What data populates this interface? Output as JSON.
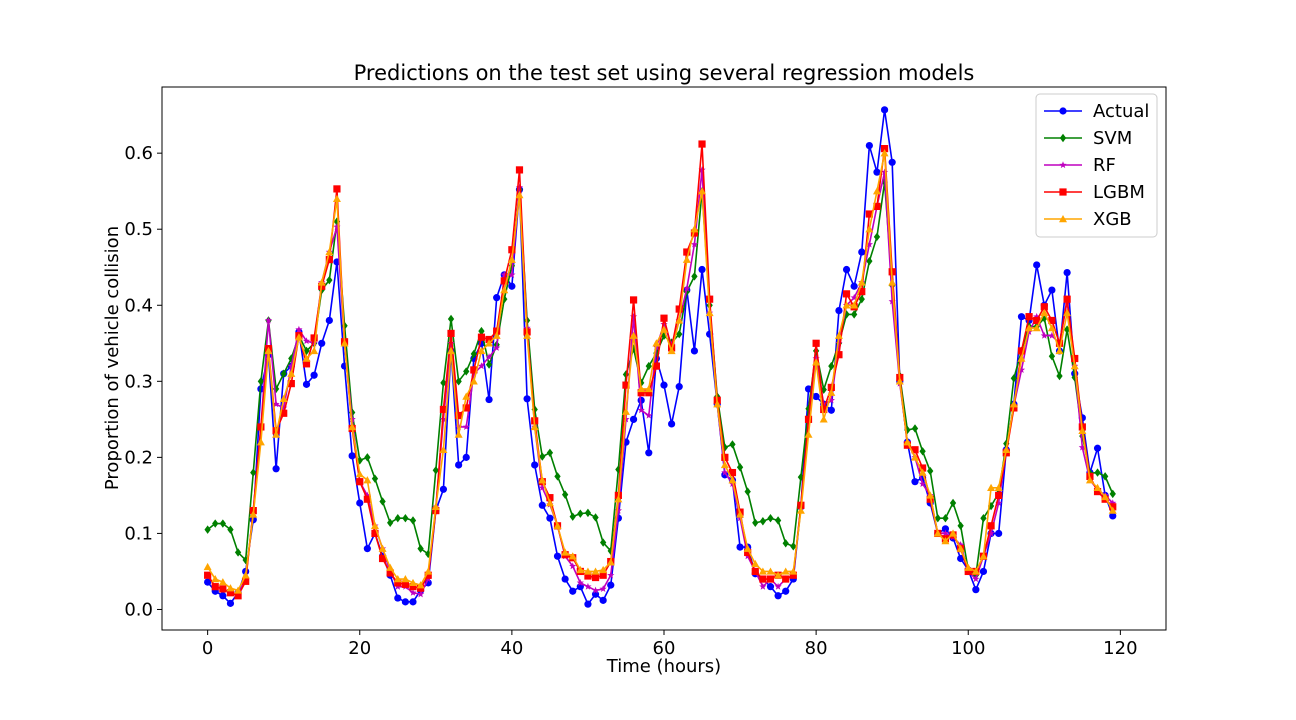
{
  "chart_data": {
    "type": "line",
    "title": "Predictions on the test set using several regression models",
    "xlabel": "Time (hours)",
    "ylabel": "Proportion of vehicle collision",
    "xlim": [
      -6,
      126
    ],
    "ylim": [
      -0.027,
      0.687
    ],
    "xticks": [
      0,
      20,
      40,
      60,
      80,
      100,
      120
    ],
    "yticks": [
      0.0,
      0.1,
      0.2,
      0.3,
      0.4,
      0.5,
      0.6
    ],
    "ytick_labels": [
      "0.0",
      "0.1",
      "0.2",
      "0.3",
      "0.4",
      "0.5",
      "0.6"
    ],
    "legend_position": "top-right",
    "grid": false,
    "x": [
      0,
      1,
      2,
      3,
      4,
      5,
      6,
      7,
      8,
      9,
      10,
      11,
      12,
      13,
      14,
      15,
      16,
      17,
      18,
      19,
      20,
      21,
      22,
      23,
      24,
      25,
      26,
      27,
      28,
      29,
      30,
      31,
      32,
      33,
      34,
      35,
      36,
      37,
      38,
      39,
      40,
      41,
      42,
      43,
      44,
      45,
      46,
      47,
      48,
      49,
      50,
      51,
      52,
      53,
      54,
      55,
      56,
      57,
      58,
      59,
      60,
      61,
      62,
      63,
      64,
      65,
      66,
      67,
      68,
      69,
      70,
      71,
      72,
      73,
      74,
      75,
      76,
      77,
      78,
      79,
      80,
      81,
      82,
      83,
      84,
      85,
      86,
      87,
      88,
      89,
      90,
      91,
      92,
      93,
      94,
      95,
      96,
      97,
      98,
      99,
      100,
      101,
      102,
      103,
      104,
      105,
      106,
      107,
      108,
      109,
      110,
      111,
      112,
      113,
      114,
      115,
      116,
      117,
      118,
      119
    ],
    "series": [
      {
        "name": "Actual",
        "color": "#0000ff",
        "marker": "circle",
        "values": [
          0.036,
          0.024,
          0.018,
          0.008,
          0.022,
          0.05,
          0.118,
          0.29,
          0.335,
          0.185,
          0.31,
          0.32,
          0.365,
          0.296,
          0.308,
          0.35,
          0.38,
          0.457,
          0.32,
          0.202,
          0.14,
          0.08,
          0.1,
          0.07,
          0.045,
          0.015,
          0.01,
          0.01,
          0.025,
          0.035,
          0.13,
          0.158,
          0.34,
          0.19,
          0.2,
          0.33,
          0.35,
          0.276,
          0.41,
          0.44,
          0.425,
          0.552,
          0.277,
          0.19,
          0.137,
          0.12,
          0.07,
          0.04,
          0.024,
          0.03,
          0.007,
          0.02,
          0.012,
          0.032,
          0.12,
          0.22,
          0.25,
          0.275,
          0.206,
          0.33,
          0.295,
          0.244,
          0.293,
          0.42,
          0.34,
          0.447,
          0.362,
          0.27,
          0.177,
          0.17,
          0.082,
          0.082,
          0.047,
          0.04,
          0.03,
          0.018,
          0.024,
          0.04,
          0.135,
          0.29,
          0.28,
          0.27,
          0.262,
          0.393,
          0.447,
          0.425,
          0.47,
          0.61,
          0.575,
          0.657,
          0.588,
          0.3,
          0.22,
          0.168,
          0.173,
          0.14,
          0.1,
          0.106,
          0.094,
          0.067,
          0.052,
          0.026,
          0.05,
          0.1,
          0.1,
          0.21,
          0.27,
          0.385,
          0.38,
          0.453,
          0.4,
          0.42,
          0.34,
          0.443,
          0.31,
          0.252,
          0.18,
          0.212,
          0.15,
          0.123
        ]
      },
      {
        "name": "SVM",
        "color": "#008000",
        "marker": "diamond",
        "values": [
          0.105,
          0.113,
          0.113,
          0.105,
          0.075,
          0.065,
          0.18,
          0.3,
          0.38,
          0.29,
          0.31,
          0.33,
          0.36,
          0.34,
          0.35,
          0.42,
          0.433,
          0.51,
          0.373,
          0.259,
          0.196,
          0.2,
          0.172,
          0.142,
          0.114,
          0.12,
          0.12,
          0.117,
          0.08,
          0.073,
          0.183,
          0.298,
          0.382,
          0.3,
          0.313,
          0.336,
          0.366,
          0.322,
          0.348,
          0.408,
          0.452,
          0.552,
          0.38,
          0.263,
          0.201,
          0.206,
          0.175,
          0.151,
          0.122,
          0.126,
          0.127,
          0.121,
          0.088,
          0.077,
          0.184,
          0.309,
          0.343,
          0.298,
          0.32,
          0.337,
          0.36,
          0.351,
          0.362,
          0.418,
          0.438,
          0.55,
          0.4,
          0.28,
          0.213,
          0.217,
          0.187,
          0.155,
          0.114,
          0.116,
          0.12,
          0.117,
          0.087,
          0.083,
          0.174,
          0.264,
          0.34,
          0.289,
          0.32,
          0.35,
          0.388,
          0.388,
          0.408,
          0.458,
          0.49,
          0.562,
          0.426,
          0.307,
          0.236,
          0.238,
          0.208,
          0.182,
          0.12,
          0.12,
          0.14,
          0.11,
          0.052,
          0.045,
          0.12,
          0.136,
          0.153,
          0.218,
          0.304,
          0.34,
          0.372,
          0.372,
          0.383,
          0.333,
          0.307,
          0.368,
          0.305,
          0.228,
          0.179,
          0.18,
          0.175,
          0.152
        ]
      },
      {
        "name": "RF",
        "color": "#bf00bf",
        "marker": "star",
        "values": [
          0.045,
          0.03,
          0.027,
          0.022,
          0.02,
          0.04,
          0.13,
          0.24,
          0.38,
          0.27,
          0.265,
          0.32,
          0.368,
          0.353,
          0.35,
          0.43,
          0.47,
          0.503,
          0.35,
          0.25,
          0.168,
          0.15,
          0.11,
          0.08,
          0.05,
          0.03,
          0.03,
          0.022,
          0.02,
          0.04,
          0.135,
          0.25,
          0.35,
          0.24,
          0.24,
          0.31,
          0.32,
          0.332,
          0.344,
          0.44,
          0.44,
          0.555,
          0.37,
          0.24,
          0.16,
          0.138,
          0.11,
          0.07,
          0.057,
          0.035,
          0.03,
          0.025,
          0.027,
          0.045,
          0.13,
          0.25,
          0.385,
          0.262,
          0.255,
          0.345,
          0.375,
          0.348,
          0.38,
          0.422,
          0.48,
          0.578,
          0.39,
          0.27,
          0.18,
          0.165,
          0.12,
          0.07,
          0.05,
          0.03,
          0.04,
          0.03,
          0.04,
          0.045,
          0.135,
          0.25,
          0.33,
          0.27,
          0.275,
          0.35,
          0.4,
          0.41,
          0.43,
          0.48,
          0.53,
          0.575,
          0.405,
          0.297,
          0.22,
          0.2,
          0.165,
          0.15,
          0.1,
          0.1,
          0.095,
          0.085,
          0.05,
          0.04,
          0.07,
          0.1,
          0.14,
          0.21,
          0.268,
          0.315,
          0.365,
          0.385,
          0.36,
          0.36,
          0.35,
          0.405,
          0.32,
          0.213,
          0.17,
          0.158,
          0.15,
          0.14
        ]
      },
      {
        "name": "LGBM",
        "color": "#ff0000",
        "marker": "square",
        "values": [
          0.045,
          0.03,
          0.027,
          0.022,
          0.018,
          0.037,
          0.13,
          0.24,
          0.343,
          0.235,
          0.258,
          0.297,
          0.36,
          0.323,
          0.357,
          0.425,
          0.46,
          0.553,
          0.352,
          0.238,
          0.168,
          0.145,
          0.1,
          0.067,
          0.048,
          0.035,
          0.033,
          0.03,
          0.028,
          0.045,
          0.13,
          0.263,
          0.363,
          0.255,
          0.265,
          0.315,
          0.358,
          0.355,
          0.366,
          0.432,
          0.473,
          0.578,
          0.365,
          0.248,
          0.168,
          0.147,
          0.11,
          0.072,
          0.068,
          0.05,
          0.044,
          0.042,
          0.045,
          0.063,
          0.15,
          0.295,
          0.407,
          0.285,
          0.285,
          0.32,
          0.383,
          0.344,
          0.395,
          0.47,
          0.495,
          0.612,
          0.408,
          0.275,
          0.2,
          0.18,
          0.128,
          0.075,
          0.05,
          0.04,
          0.04,
          0.045,
          0.04,
          0.045,
          0.137,
          0.25,
          0.35,
          0.263,
          0.292,
          0.335,
          0.415,
          0.398,
          0.418,
          0.52,
          0.53,
          0.606,
          0.444,
          0.305,
          0.216,
          0.21,
          0.186,
          0.145,
          0.1,
          0.093,
          0.098,
          0.08,
          0.05,
          0.05,
          0.07,
          0.11,
          0.15,
          0.206,
          0.265,
          0.34,
          0.385,
          0.38,
          0.398,
          0.38,
          0.35,
          0.408,
          0.33,
          0.24,
          0.175,
          0.155,
          0.145,
          0.135
        ]
      },
      {
        "name": "XGB",
        "color": "#ffa500",
        "marker": "triangle",
        "values": [
          0.056,
          0.04,
          0.036,
          0.028,
          0.025,
          0.045,
          0.125,
          0.22,
          0.34,
          0.23,
          0.277,
          0.31,
          0.358,
          0.33,
          0.34,
          0.43,
          0.47,
          0.54,
          0.35,
          0.24,
          0.178,
          0.17,
          0.11,
          0.08,
          0.055,
          0.04,
          0.04,
          0.035,
          0.032,
          0.05,
          0.135,
          0.21,
          0.34,
          0.23,
          0.28,
          0.3,
          0.34,
          0.35,
          0.36,
          0.42,
          0.46,
          0.545,
          0.36,
          0.24,
          0.17,
          0.14,
          0.11,
          0.075,
          0.07,
          0.052,
          0.05,
          0.05,
          0.052,
          0.062,
          0.145,
          0.26,
          0.36,
          0.29,
          0.29,
          0.35,
          0.368,
          0.34,
          0.38,
          0.46,
          0.5,
          0.55,
          0.39,
          0.27,
          0.19,
          0.17,
          0.125,
          0.08,
          0.06,
          0.05,
          0.05,
          0.045,
          0.05,
          0.05,
          0.13,
          0.23,
          0.325,
          0.25,
          0.285,
          0.36,
          0.4,
          0.4,
          0.43,
          0.5,
          0.55,
          0.6,
          0.43,
          0.3,
          0.22,
          0.2,
          0.18,
          0.15,
          0.1,
          0.09,
          0.1,
          0.08,
          0.055,
          0.05,
          0.07,
          0.16,
          0.16,
          0.21,
          0.27,
          0.33,
          0.37,
          0.37,
          0.39,
          0.37,
          0.34,
          0.39,
          0.32,
          0.235,
          0.17,
          0.16,
          0.148,
          0.13
        ]
      }
    ]
  }
}
